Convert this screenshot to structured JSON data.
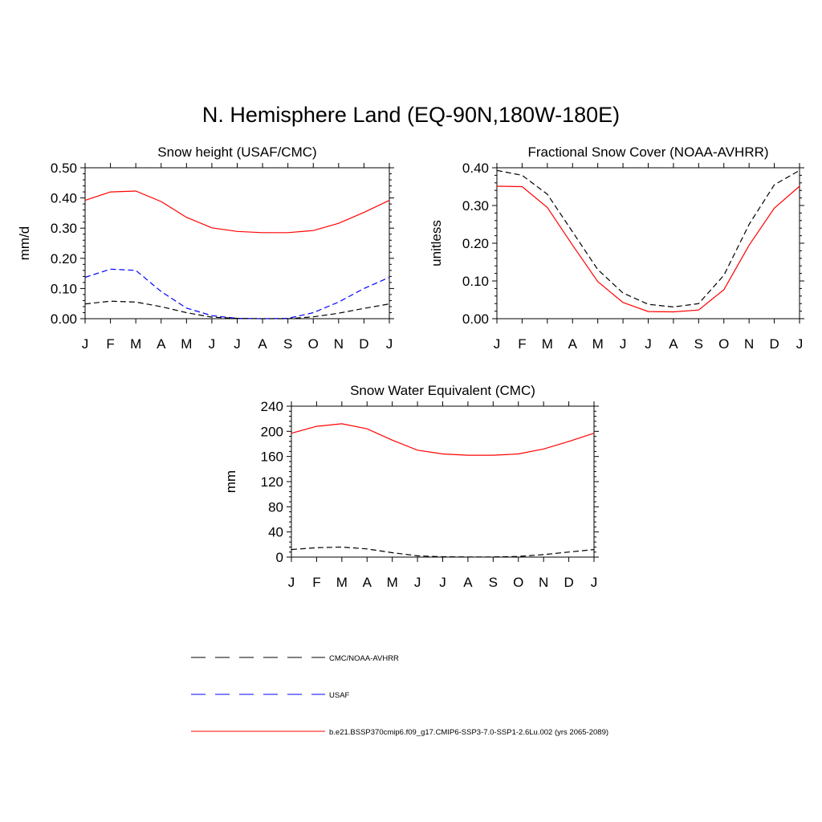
{
  "main_title": "N. Hemisphere Land (EQ-90N,180W-180E)",
  "colors": {
    "model": "#ff0000",
    "usaf": "#0000ff",
    "cmc": "#000000"
  },
  "legend": [
    {
      "label": "CMC/NOAA-AVHRR",
      "color": "#000000",
      "dash": "dashed"
    },
    {
      "label": "USAF",
      "color": "#0000ff",
      "dash": "dashed"
    },
    {
      "label": "b.e21.BSSP370cmip6.f09_g17.CMIP6-SSP3-7.0-SSP1-2.6Lu.002 (yrs 2065-2089)",
      "color": "#ff0000",
      "dash": "solid"
    }
  ],
  "chart_data": [
    {
      "type": "line",
      "title": "Snow height (USAF/CMC)",
      "xlabel": "",
      "ylabel": "mm/d",
      "categories": [
        "J",
        "F",
        "M",
        "A",
        "M",
        "J",
        "J",
        "A",
        "S",
        "O",
        "N",
        "D",
        "J"
      ],
      "ylim": [
        0,
        0.5
      ],
      "yticks": [
        "0.00",
        "0.10",
        "0.20",
        "0.30",
        "0.40",
        "0.50"
      ],
      "series": [
        {
          "name": "b.e21.BSSP370cmip6.f09_g17.CMIP6-SSP3-7.0-SSP1-2.6Lu.002 (yrs 2065-2089)",
          "color": "#ff0000",
          "dash": "solid",
          "values": [
            0.392,
            0.42,
            0.423,
            0.388,
            0.336,
            0.301,
            0.289,
            0.285,
            0.285,
            0.292,
            0.316,
            0.352,
            0.392
          ]
        },
        {
          "name": "USAF",
          "color": "#0000ff",
          "dash": "dashed",
          "values": [
            0.137,
            0.164,
            0.16,
            0.09,
            0.035,
            0.01,
            0.001,
            0.0,
            0.001,
            0.02,
            0.055,
            0.1,
            0.137
          ]
        },
        {
          "name": "CMC/NOAA-AVHRR",
          "color": "#000000",
          "dash": "dashed",
          "values": [
            0.049,
            0.058,
            0.055,
            0.04,
            0.02,
            0.005,
            0.001,
            0.0,
            0.0,
            0.006,
            0.018,
            0.034,
            0.049
          ]
        }
      ]
    },
    {
      "type": "line",
      "title": "Fractional Snow Cover (NOAA-AVHRR)",
      "xlabel": "",
      "ylabel": "unitless",
      "categories": [
        "J",
        "F",
        "M",
        "A",
        "M",
        "J",
        "J",
        "A",
        "S",
        "O",
        "N",
        "D",
        "J"
      ],
      "ylim": [
        0,
        0.4
      ],
      "yticks": [
        "0.00",
        "0.10",
        "0.20",
        "0.30",
        "0.40"
      ],
      "series": [
        {
          "name": "b.e21.BSSP370cmip6.f09_g17.CMIP6-SSP3-7.0-SSP1-2.6Lu.002 (yrs 2065-2089)",
          "color": "#ff0000",
          "dash": "solid",
          "values": [
            0.351,
            0.35,
            0.295,
            0.195,
            0.098,
            0.043,
            0.019,
            0.018,
            0.023,
            0.077,
            0.195,
            0.293,
            0.351
          ]
        },
        {
          "name": "CMC/NOAA-AVHRR",
          "color": "#000000",
          "dash": "dashed",
          "values": [
            0.393,
            0.38,
            0.33,
            0.23,
            0.13,
            0.068,
            0.038,
            0.031,
            0.04,
            0.115,
            0.25,
            0.355,
            0.393
          ]
        }
      ]
    },
    {
      "type": "line",
      "title": "Snow Water Equivalent (CMC)",
      "xlabel": "",
      "ylabel": "mm",
      "categories": [
        "J",
        "F",
        "M",
        "A",
        "M",
        "J",
        "J",
        "A",
        "S",
        "O",
        "N",
        "D",
        "J"
      ],
      "ylim": [
        0,
        240
      ],
      "yticks": [
        "0",
        "40",
        "80",
        "120",
        "160",
        "200",
        "240"
      ],
      "series": [
        {
          "name": "b.e21.BSSP370cmip6.f09_g17.CMIP6-SSP3-7.0-SSP1-2.6Lu.002 (yrs 2065-2089)",
          "color": "#ff0000",
          "dash": "solid",
          "values": [
            197,
            208,
            212,
            204,
            186,
            170,
            164,
            162,
            162,
            164,
            172,
            184,
            197
          ]
        },
        {
          "name": "CMC/NOAA-AVHRR",
          "color": "#000000",
          "dash": "dashed",
          "values": [
            12,
            15,
            16,
            13,
            7,
            2,
            0.5,
            0.2,
            0.3,
            1,
            4,
            8,
            12
          ]
        }
      ]
    }
  ]
}
